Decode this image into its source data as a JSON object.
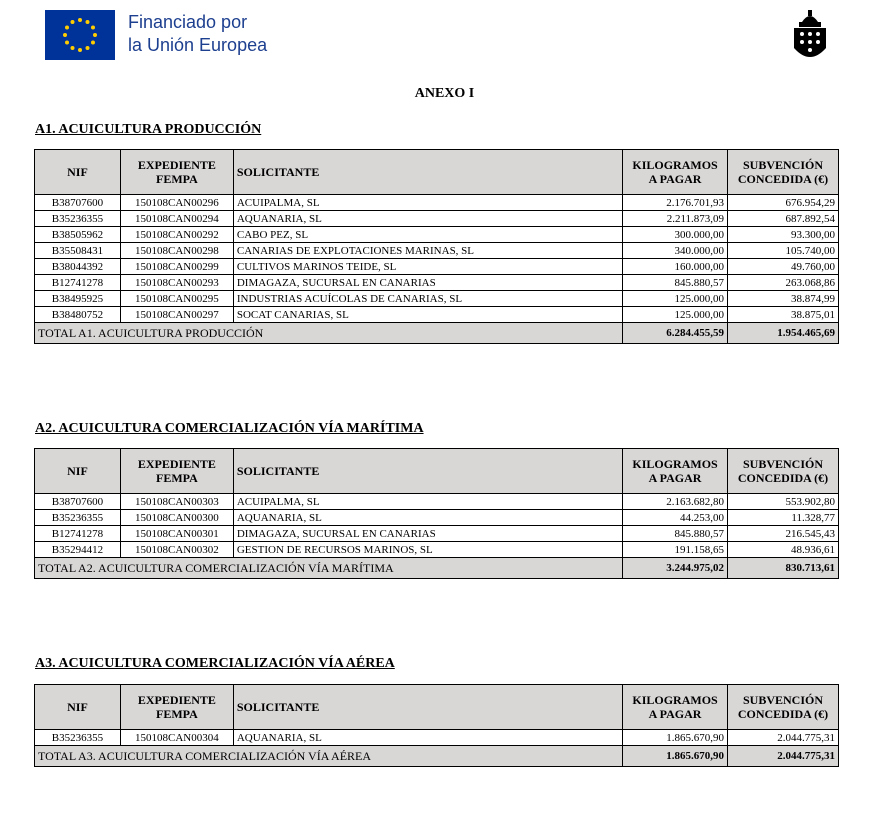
{
  "header": {
    "eu_line1": "Financiado por",
    "eu_line2": "la Unión Europea"
  },
  "title": "ANEXO I",
  "columns": {
    "nif": "NIF",
    "exp1": "EXPEDIENTE",
    "exp2": "FEMPA",
    "sol": "SOLICITANTE",
    "kg1": "KILOGRAMOS",
    "kg2": "A PAGAR",
    "sub1": "SUBVENCIÓN",
    "sub2": "CONCEDIDA (€)"
  },
  "sections": [
    {
      "title": "A1. ACUICULTURA PRODUCCIÓN",
      "rows": [
        [
          "B38707600",
          "150108CAN00296",
          "ACUIPALMA, SL",
          "2.176.701,93",
          "676.954,29"
        ],
        [
          "B35236355",
          "150108CAN00294",
          "AQUANARIA, SL",
          "2.211.873,09",
          "687.892,54"
        ],
        [
          "B38505962",
          "150108CAN00292",
          "CABO PEZ, SL",
          "300.000,00",
          "93.300,00"
        ],
        [
          "B35508431",
          "150108CAN00298",
          "CANARIAS DE EXPLOTACIONES MARINAS, SL",
          "340.000,00",
          "105.740,00"
        ],
        [
          "B38044392",
          "150108CAN00299",
          "CULTIVOS MARINOS TEIDE, SL",
          "160.000,00",
          "49.760,00"
        ],
        [
          "B12741278",
          "150108CAN00293",
          "DIMAGAZA, SUCURSAL EN CANARIAS",
          "845.880,57",
          "263.068,86"
        ],
        [
          "B38495925",
          "150108CAN00295",
          "INDUSTRIAS ACUÍCOLAS DE CANARIAS, SL",
          "125.000,00",
          "38.874,99"
        ],
        [
          "B38480752",
          "150108CAN00297",
          "SOCAT CANARIAS, SL",
          "125.000,00",
          "38.875,01"
        ]
      ],
      "total": {
        "label": "TOTAL A1. ACUICULTURA PRODUCCIÓN",
        "kg": "6.284.455,59",
        "sub": "1.954.465,69"
      }
    },
    {
      "title": "A2. ACUICULTURA COMERCIALIZACIÓN VÍA MARÍTIMA",
      "rows": [
        [
          "B38707600",
          "150108CAN00303",
          "ACUIPALMA, SL",
          "2.163.682,80",
          "553.902,80"
        ],
        [
          "B35236355",
          "150108CAN00300",
          "AQUANARIA, SL",
          "44.253,00",
          "11.328,77"
        ],
        [
          "B12741278",
          "150108CAN00301",
          "DIMAGAZA, SUCURSAL EN CANARIAS",
          "845.880,57",
          "216.545,43"
        ],
        [
          "B35294412",
          "150108CAN00302",
          "GESTION DE RECURSOS MARINOS, SL",
          "191.158,65",
          "48.936,61"
        ]
      ],
      "total": {
        "label": "TOTAL A2. ACUICULTURA COMERCIALIZACIÓN VÍA MARÍTIMA",
        "kg": "3.244.975,02",
        "sub": "830.713,61"
      }
    },
    {
      "title": "A3. ACUICULTURA COMERCIALIZACIÓN VÍA AÉREA",
      "rows": [
        [
          "B35236355",
          "150108CAN00304",
          "AQUANARIA, SL",
          "1.865.670,90",
          "2.044.775,31"
        ]
      ],
      "total": {
        "label": "TOTAL A3. ACUICULTURA COMERCIALIZACIÓN VÍA AÉREA",
        "kg": "1.865.670,90",
        "sub": "2.044.775,31"
      }
    }
  ]
}
